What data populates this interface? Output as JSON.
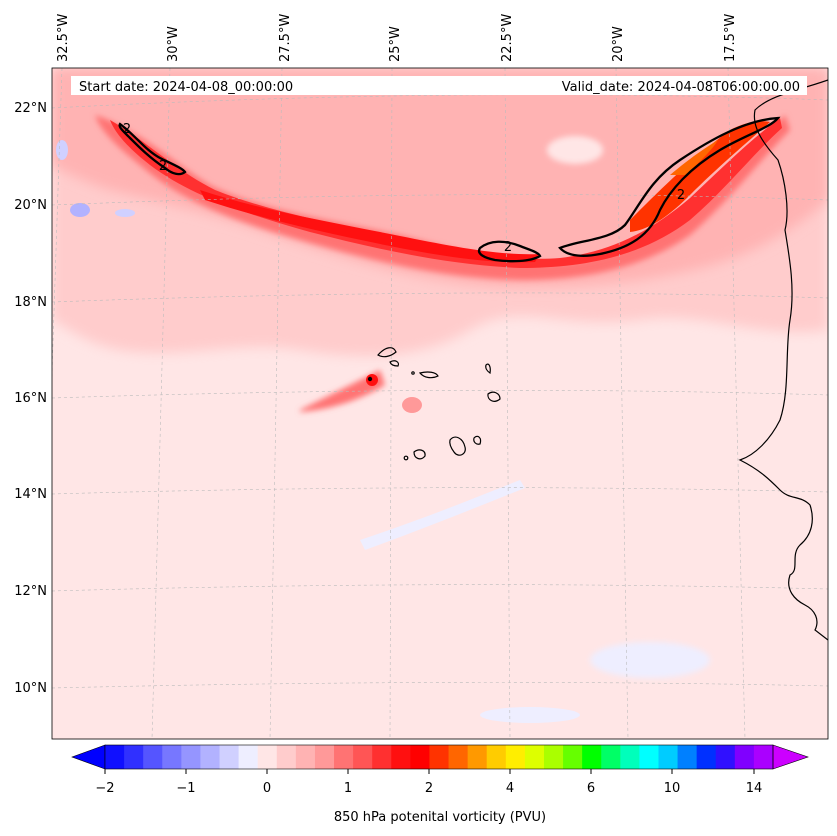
{
  "header": {
    "start_date": "Start date: 2024-04-08_00:00:00",
    "valid_date": "Valid_date: 2024-04-08T06:00:00.00"
  },
  "map": {
    "lon_labels": [
      "32.5°W",
      "30°W",
      "27.5°W",
      "25°W",
      "22.5°W",
      "20°W",
      "17.5°W"
    ],
    "lat_labels": [
      "22°N",
      "20°N",
      "18°N",
      "16°N",
      "14°N",
      "12°N",
      "10°N"
    ],
    "contour_labels": [
      "2",
      "2",
      "2",
      "2"
    ]
  },
  "colorbar": {
    "label": "850 hPa potenital vorticity (PVU)",
    "ticks": [
      "−2",
      "−1",
      "0",
      "1",
      "2",
      "4",
      "6",
      "10",
      "14"
    ],
    "colors": [
      "#1010ff",
      "#3030ff",
      "#5555ff",
      "#7777ff",
      "#9595ff",
      "#b2b2ff",
      "#d0d0ff",
      "#eeeeff",
      "#ffe6e6",
      "#ffcccc",
      "#ffb3b3",
      "#ff9999",
      "#ff7373",
      "#ff5555",
      "#ff3030",
      "#ff1010",
      "#ff0000",
      "#ff3300",
      "#ff6600",
      "#ff9900",
      "#ffcc00",
      "#ffee00",
      "#ddff00",
      "#aaff00",
      "#66ff00",
      "#00ff00",
      "#00ff66",
      "#00ffbb",
      "#00ffff",
      "#00ccff",
      "#0080ff",
      "#0030ff",
      "#3010ff",
      "#8000ff",
      "#aa00ff"
    ]
  }
}
